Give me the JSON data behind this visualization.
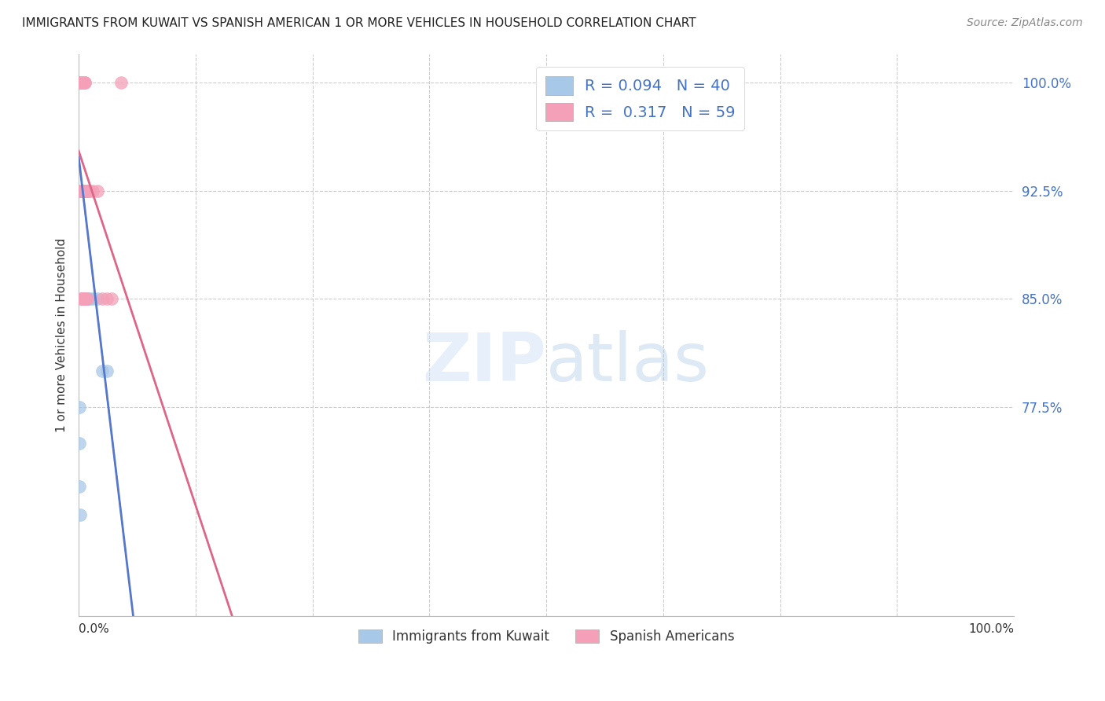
{
  "title": "IMMIGRANTS FROM KUWAIT VS SPANISH AMERICAN 1 OR MORE VEHICLES IN HOUSEHOLD CORRELATION CHART",
  "source": "Source: ZipAtlas.com",
  "ylabel": "1 or more Vehicles in Household",
  "right_yticks": [
    77.5,
    85.0,
    92.5,
    100.0
  ],
  "right_yticklabels": [
    "77.5%",
    "85.0%",
    "92.5%",
    "100.0%"
  ],
  "R_kuwait": 0.094,
  "N_kuwait": 40,
  "R_spanish": 0.317,
  "N_spanish": 59,
  "color_kuwait": "#a8c8e8",
  "color_spanish": "#f4a0b8",
  "color_trendline_kuwait": "#5577cc",
  "color_trendline_spanish": "#dd6688",
  "color_trendline_grey": "#aaaaaa",
  "xlim": [
    0,
    100
  ],
  "ylim_low": 63.0,
  "ylim_high": 102.0,
  "grid_color": "#cccccc",
  "background_color": "#ffffff",
  "kuwait_x": [
    0.05,
    0.08,
    0.1,
    0.12,
    0.15,
    0.18,
    0.2,
    0.22,
    0.25,
    0.28,
    0.3,
    0.32,
    0.35,
    0.4,
    0.45,
    0.5,
    0.55,
    0.6,
    0.7,
    0.8,
    0.9,
    1.0,
    1.2,
    1.5,
    2.0,
    2.5,
    3.0,
    0.05,
    0.08,
    0.1,
    0.12,
    0.15,
    0.18,
    0.2,
    0.22,
    0.25,
    0.05,
    0.08,
    0.1,
    0.12
  ],
  "kuwait_y": [
    100.0,
    100.0,
    100.0,
    100.0,
    100.0,
    100.0,
    100.0,
    100.0,
    100.0,
    100.0,
    100.0,
    100.0,
    92.5,
    92.5,
    92.5,
    92.5,
    92.5,
    92.5,
    92.5,
    92.5,
    85.0,
    85.0,
    85.0,
    85.0,
    85.0,
    80.0,
    80.0,
    100.0,
    100.0,
    100.0,
    100.0,
    92.5,
    92.5,
    92.5,
    92.5,
    92.5,
    77.5,
    75.0,
    72.0,
    70.0
  ],
  "spanish_x": [
    0.05,
    0.08,
    0.1,
    0.12,
    0.15,
    0.18,
    0.2,
    0.22,
    0.25,
    0.28,
    0.3,
    0.32,
    0.35,
    0.4,
    0.45,
    0.5,
    0.55,
    0.6,
    0.65,
    0.7,
    0.75,
    0.8,
    0.9,
    1.0,
    1.2,
    1.5,
    2.0,
    2.5,
    3.0,
    3.5,
    0.05,
    0.08,
    0.1,
    0.12,
    0.15,
    0.18,
    0.2,
    0.22,
    0.25,
    0.28,
    0.3,
    0.35,
    0.4,
    0.45,
    0.5,
    0.55,
    0.6,
    0.7,
    0.8,
    0.9,
    0.1,
    0.12,
    0.15,
    0.2,
    0.25,
    0.3,
    0.35,
    0.4,
    4.5
  ],
  "spanish_y": [
    100.0,
    100.0,
    100.0,
    100.0,
    100.0,
    100.0,
    100.0,
    100.0,
    100.0,
    100.0,
    100.0,
    100.0,
    100.0,
    100.0,
    100.0,
    100.0,
    100.0,
    100.0,
    100.0,
    100.0,
    92.5,
    92.5,
    92.5,
    92.5,
    92.5,
    92.5,
    92.5,
    85.0,
    85.0,
    85.0,
    100.0,
    100.0,
    100.0,
    92.5,
    92.5,
    92.5,
    92.5,
    92.5,
    92.5,
    92.5,
    92.5,
    92.5,
    85.0,
    85.0,
    85.0,
    85.0,
    85.0,
    85.0,
    85.0,
    85.0,
    100.0,
    100.0,
    92.5,
    92.5,
    85.0,
    92.5,
    85.0,
    85.0,
    100.0
  ]
}
